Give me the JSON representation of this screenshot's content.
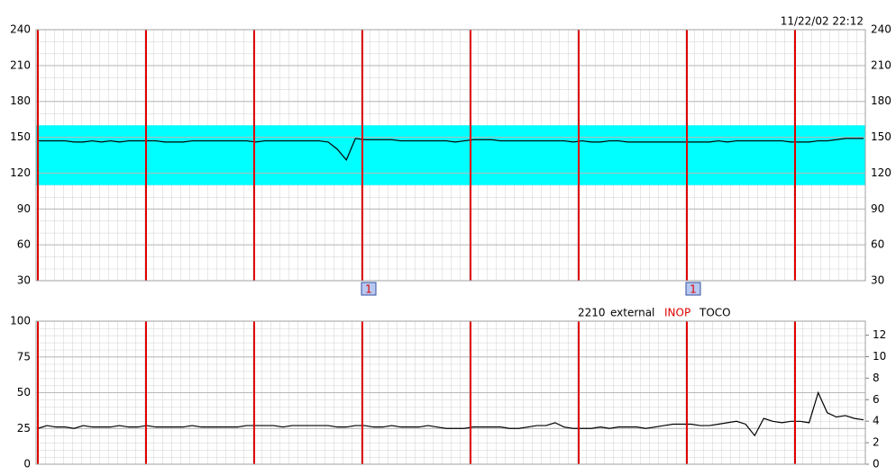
{
  "header": {
    "timestamp": "11/22/02 22:12"
  },
  "markers": [
    "1",
    "1"
  ],
  "status": {
    "code": "2210",
    "mode": "external",
    "alert": "INOP",
    "channel": "TOCO"
  },
  "chart_data": [
    {
      "type": "line",
      "color": "#000000",
      "band": [
        110,
        160
      ],
      "band_color": "#00ffff",
      "values": [
        147,
        147,
        147,
        147,
        146,
        146,
        147,
        146,
        147,
        146,
        147,
        147,
        147,
        147,
        146,
        146,
        146,
        147,
        147,
        147,
        147,
        147,
        147,
        147,
        146,
        147,
        147,
        147,
        147,
        147,
        147,
        147,
        146,
        140,
        131,
        149,
        148,
        148,
        148,
        148,
        147,
        147,
        147,
        147,
        147,
        147,
        146,
        147,
        148,
        148,
        148,
        147,
        147,
        147,
        147,
        147,
        147,
        147,
        147,
        146,
        147,
        146,
        146,
        147,
        147,
        146,
        146,
        146,
        146,
        146,
        146,
        146,
        146,
        146,
        146,
        147,
        146,
        147,
        147,
        147,
        147,
        147,
        147,
        146,
        146,
        146,
        147,
        147,
        148,
        149,
        149,
        149
      ],
      "ylim": [
        30,
        240
      ],
      "yticks": [
        30,
        60,
        90,
        120,
        150,
        180,
        210,
        240
      ],
      "grid": true
    },
    {
      "type": "line",
      "color": "#000000",
      "values": [
        25,
        27,
        26,
        26,
        25,
        27,
        26,
        26,
        26,
        27,
        26,
        26,
        27,
        26,
        26,
        26,
        26,
        27,
        26,
        26,
        26,
        26,
        26,
        27,
        27,
        27,
        27,
        26,
        27,
        27,
        27,
        27,
        27,
        26,
        26,
        27,
        27,
        26,
        26,
        27,
        26,
        26,
        26,
        27,
        26,
        25,
        25,
        25,
        26,
        26,
        26,
        26,
        25,
        25,
        26,
        27,
        27,
        29,
        26,
        25,
        25,
        25,
        26,
        25,
        26,
        26,
        26,
        25,
        26,
        27,
        28,
        28,
        28,
        27,
        27,
        28,
        29,
        30,
        28,
        20,
        32,
        30,
        29,
        30,
        30,
        29,
        50,
        36,
        33,
        34,
        32,
        31
      ],
      "ylim": [
        0,
        100
      ],
      "yticks": [
        0,
        25,
        50,
        75,
        100
      ],
      "y2lim": [
        0,
        13.3
      ],
      "y2ticks": [
        0,
        2,
        4,
        6,
        8,
        10,
        12
      ],
      "grid": true
    }
  ]
}
